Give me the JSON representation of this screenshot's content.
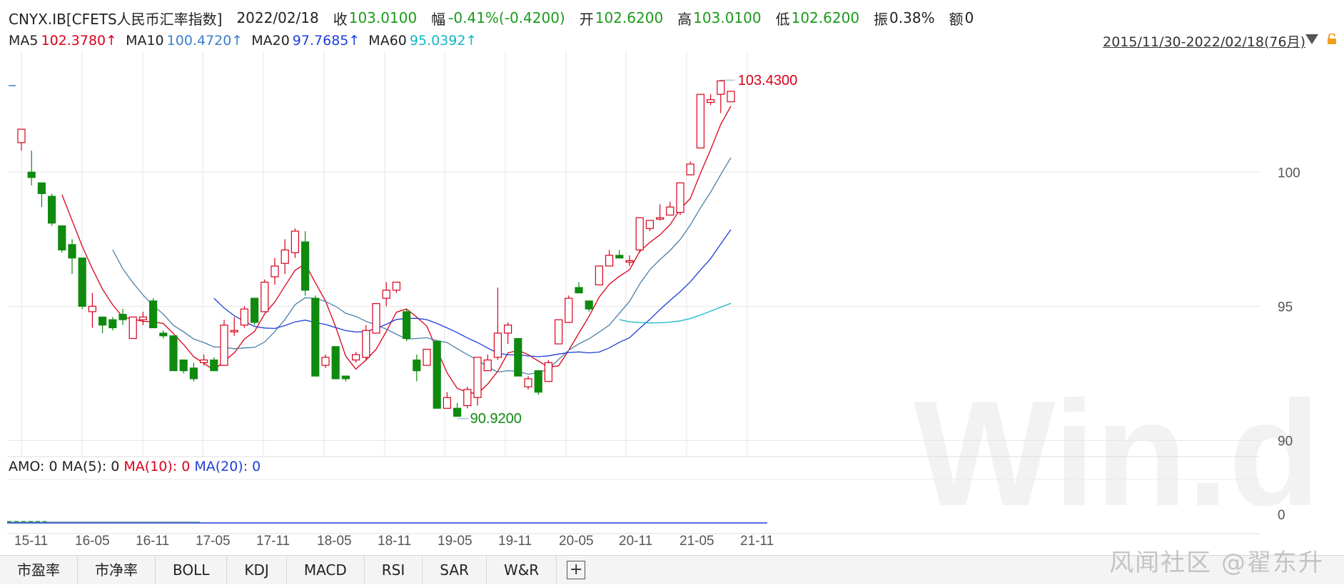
{
  "header": {
    "symbol": "CNYX.IB[CFETS人民币汇率指数]",
    "date": "2022/02/18",
    "close_label": "收",
    "close": "103.0100",
    "change_label": "幅",
    "change": "-0.41%(-0.4200)",
    "open_label": "开",
    "open": "102.6200",
    "high_label": "高",
    "high": "103.0100",
    "low_label": "低",
    "low": "102.6200",
    "amp_label": "振",
    "amp": "0.38%",
    "amount_label": "额",
    "amount": "0"
  },
  "ma_row": {
    "ma5_label": "MA5",
    "ma5": "102.3780↑",
    "ma10_label": "MA10",
    "ma10": "100.4720↑",
    "ma20_label": "MA20",
    "ma20": "97.7685↑",
    "ma60_label": "MA60",
    "ma60": "95.0392↑"
  },
  "range": "2015/11/30-2022/02/18(76月)",
  "amo_row": {
    "amo": "AMO: 0",
    "ma5": "MA(5): 0",
    "ma10": "MA(10): 0",
    "ma20": "MA(20): 0"
  },
  "tabs": [
    "市盈率",
    "市净率",
    "BOLL",
    "KDJ",
    "MACD",
    "RSI",
    "SAR",
    "W&R"
  ],
  "watermark": "Win.d",
  "weibo_mark": "风闻社区 @翟东升",
  "colors": {
    "up": "#d9001b",
    "down": "#0f8a0f",
    "ma5": "#d9001b",
    "ma10": "#4a7fa8",
    "ma20": "#1f3fd6",
    "ma60": "#12b6c8",
    "grid": "#e6e6e6"
  },
  "chart_data": {
    "type": "candlestick",
    "y_ticks": [
      "100",
      "95",
      "90"
    ],
    "vol_tick": "0",
    "x_ticks": [
      "15-11",
      "16-05",
      "16-11",
      "17-05",
      "17-11",
      "18-05",
      "18-11",
      "19-05",
      "19-11",
      "20-05",
      "20-11",
      "21-05",
      "21-11"
    ],
    "annotations": [
      {
        "text": "103.4300",
        "value": 103.43,
        "type": "max"
      },
      {
        "text": "90.9200",
        "value": 90.92,
        "type": "min"
      }
    ],
    "candles": [
      {
        "o": 101.1,
        "h": 101.6,
        "l": 100.8,
        "c": 101.6
      },
      {
        "o": 100.0,
        "h": 100.8,
        "l": 99.5,
        "c": 99.8
      },
      {
        "o": 99.6,
        "h": 99.6,
        "l": 98.7,
        "c": 99.2
      },
      {
        "o": 99.1,
        "h": 99.2,
        "l": 98.0,
        "c": 98.1
      },
      {
        "o": 98.0,
        "h": 98.0,
        "l": 97.0,
        "c": 97.1
      },
      {
        "o": 97.3,
        "h": 97.5,
        "l": 96.2,
        "c": 96.8
      },
      {
        "o": 96.8,
        "h": 96.8,
        "l": 94.9,
        "c": 95.0
      },
      {
        "o": 94.8,
        "h": 95.5,
        "l": 94.2,
        "c": 95.0
      },
      {
        "o": 94.6,
        "h": 94.6,
        "l": 94.0,
        "c": 94.3
      },
      {
        "o": 94.5,
        "h": 94.6,
        "l": 94.1,
        "c": 94.2
      },
      {
        "o": 94.7,
        "h": 94.9,
        "l": 94.3,
        "c": 94.5
      },
      {
        "o": 93.8,
        "h": 94.5,
        "l": 93.8,
        "c": 94.6
      },
      {
        "o": 94.5,
        "h": 94.8,
        "l": 94.3,
        "c": 94.6
      },
      {
        "o": 95.2,
        "h": 95.3,
        "l": 94.2,
        "c": 94.2
      },
      {
        "o": 94.0,
        "h": 94.1,
        "l": 93.8,
        "c": 93.9
      },
      {
        "o": 93.9,
        "h": 93.9,
        "l": 92.6,
        "c": 92.6
      },
      {
        "o": 93.0,
        "h": 93.0,
        "l": 92.5,
        "c": 92.6
      },
      {
        "o": 92.7,
        "h": 92.9,
        "l": 92.2,
        "c": 92.3
      },
      {
        "o": 92.9,
        "h": 93.2,
        "l": 92.8,
        "c": 93.0
      },
      {
        "o": 93.0,
        "h": 93.1,
        "l": 92.6,
        "c": 92.6
      },
      {
        "o": 92.8,
        "h": 94.5,
        "l": 92.8,
        "c": 94.3
      },
      {
        "o": 94.1,
        "h": 94.6,
        "l": 93.9,
        "c": 94.1
      },
      {
        "o": 94.3,
        "h": 95.0,
        "l": 94.2,
        "c": 94.9
      },
      {
        "o": 95.3,
        "h": 95.3,
        "l": 94.3,
        "c": 94.4
      },
      {
        "o": 94.8,
        "h": 96.0,
        "l": 94.8,
        "c": 95.9
      },
      {
        "o": 96.1,
        "h": 96.8,
        "l": 95.8,
        "c": 96.5
      },
      {
        "o": 96.6,
        "h": 97.5,
        "l": 96.2,
        "c": 97.1
      },
      {
        "o": 97.0,
        "h": 97.9,
        "l": 96.8,
        "c": 97.8
      },
      {
        "o": 97.4,
        "h": 97.8,
        "l": 95.4,
        "c": 95.6
      },
      {
        "o": 95.3,
        "h": 95.4,
        "l": 92.4,
        "c": 92.4
      },
      {
        "o": 92.8,
        "h": 93.2,
        "l": 92.7,
        "c": 93.1
      },
      {
        "o": 93.5,
        "h": 93.5,
        "l": 92.3,
        "c": 92.3
      },
      {
        "o": 92.4,
        "h": 92.4,
        "l": 92.2,
        "c": 92.3
      },
      {
        "o": 93.0,
        "h": 93.3,
        "l": 92.9,
        "c": 93.2
      },
      {
        "o": 93.1,
        "h": 94.3,
        "l": 93.0,
        "c": 94.1
      },
      {
        "o": 94.0,
        "h": 95.0,
        "l": 94.0,
        "c": 95.1
      },
      {
        "o": 95.3,
        "h": 95.9,
        "l": 95.0,
        "c": 95.6
      },
      {
        "o": 95.6,
        "h": 95.9,
        "l": 95.5,
        "c": 95.9
      },
      {
        "o": 94.8,
        "h": 94.9,
        "l": 93.7,
        "c": 93.8
      },
      {
        "o": 93.0,
        "h": 93.2,
        "l": 92.2,
        "c": 92.6
      },
      {
        "o": 92.8,
        "h": 93.4,
        "l": 92.8,
        "c": 93.4
      },
      {
        "o": 93.7,
        "h": 93.7,
        "l": 91.2,
        "c": 91.2
      },
      {
        "o": 91.2,
        "h": 91.8,
        "l": 91.2,
        "c": 91.6
      },
      {
        "o": 91.2,
        "h": 91.4,
        "l": 90.9,
        "c": 90.9
      },
      {
        "o": 91.3,
        "h": 92.0,
        "l": 91.2,
        "c": 91.9
      },
      {
        "o": 91.6,
        "h": 93.1,
        "l": 91.3,
        "c": 93.1
      },
      {
        "o": 92.6,
        "h": 93.2,
        "l": 92.6,
        "c": 93.0
      },
      {
        "o": 93.1,
        "h": 95.7,
        "l": 93.0,
        "c": 94.0
      },
      {
        "o": 94.0,
        "h": 94.4,
        "l": 93.6,
        "c": 94.3
      },
      {
        "o": 93.8,
        "h": 93.8,
        "l": 92.4,
        "c": 92.4
      },
      {
        "o": 92.0,
        "h": 92.4,
        "l": 91.9,
        "c": 92.3
      },
      {
        "o": 92.6,
        "h": 92.6,
        "l": 91.7,
        "c": 91.8
      },
      {
        "o": 92.2,
        "h": 93.0,
        "l": 92.2,
        "c": 92.9
      },
      {
        "o": 93.6,
        "h": 94.5,
        "l": 93.6,
        "c": 94.5
      },
      {
        "o": 94.4,
        "h": 95.4,
        "l": 94.4,
        "c": 95.3
      },
      {
        "o": 95.7,
        "h": 95.9,
        "l": 95.5,
        "c": 95.5
      },
      {
        "o": 95.2,
        "h": 95.2,
        "l": 94.8,
        "c": 94.9
      },
      {
        "o": 95.8,
        "h": 96.5,
        "l": 95.8,
        "c": 96.5
      },
      {
        "o": 96.5,
        "h": 97.1,
        "l": 96.5,
        "c": 96.9
      },
      {
        "o": 96.9,
        "h": 97.1,
        "l": 96.8,
        "c": 96.8
      },
      {
        "o": 96.7,
        "h": 96.9,
        "l": 96.5,
        "c": 96.7
      },
      {
        "o": 97.1,
        "h": 98.3,
        "l": 97.0,
        "c": 98.3
      },
      {
        "o": 97.9,
        "h": 98.2,
        "l": 97.8,
        "c": 98.2
      },
      {
        "o": 98.3,
        "h": 98.8,
        "l": 98.2,
        "c": 98.3
      },
      {
        "o": 98.4,
        "h": 98.9,
        "l": 98.4,
        "c": 98.7
      },
      {
        "o": 98.5,
        "h": 99.6,
        "l": 98.4,
        "c": 99.6
      },
      {
        "o": 99.9,
        "h": 100.4,
        "l": 99.9,
        "c": 100.3
      },
      {
        "o": 100.9,
        "h": 102.9,
        "l": 100.9,
        "c": 102.9
      },
      {
        "o": 102.6,
        "h": 102.9,
        "l": 102.5,
        "c": 102.7
      },
      {
        "o": 102.9,
        "h": 103.43,
        "l": 102.2,
        "c": 103.4
      },
      {
        "o": 102.62,
        "h": 103.01,
        "l": 102.62,
        "c": 103.01
      }
    ],
    "ma5_start": 5,
    "ma10_start": 10,
    "ma20_start": 20,
    "ma60_start": 60,
    "ylim": [
      89.4,
      104.5
    ]
  }
}
